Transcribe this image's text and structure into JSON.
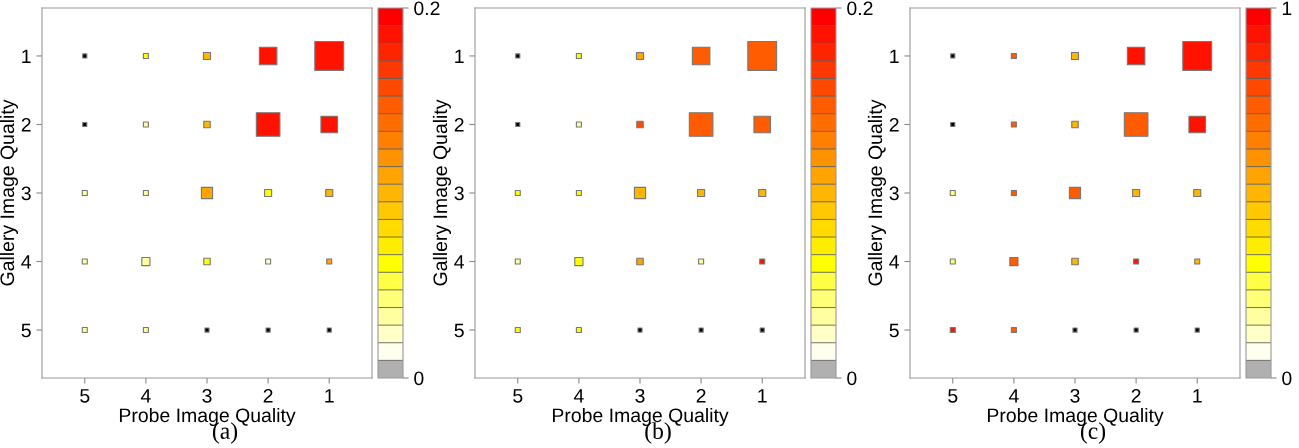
{
  "chart_data": [
    {
      "type": "bubble",
      "xlabel": "Probe Image Quality",
      "ylabel": "Gallery Image Quality",
      "annotations": [
        "(a)"
      ],
      "categories": [
        "5",
        "4",
        "3",
        "2",
        "1"
      ],
      "ylim": [
        5.7,
        0.3
      ],
      "yticks": [
        1,
        2,
        3,
        4,
        5
      ],
      "marker": "square",
      "clim": [
        0,
        0.2
      ],
      "cticks": [
        0,
        0.2
      ],
      "grid": false,
      "legend": false,
      "series": [
        {
          "x": [
            "5",
            "4",
            "3",
            "2",
            "1",
            "5",
            "4",
            "3",
            "2",
            "1",
            "5",
            "4",
            "3",
            "2",
            "1",
            "5",
            "4",
            "3",
            "2",
            "1",
            "5",
            "4",
            "3",
            "2",
            "1"
          ],
          "values": [
            1,
            1,
            1,
            1,
            1,
            2,
            2,
            2,
            2,
            2,
            3,
            3,
            3,
            3,
            3,
            4,
            4,
            4,
            4,
            4,
            5,
            5,
            5,
            5,
            5
          ],
          "sizes": [
            0.02,
            0.03,
            0.06,
            0.37,
            1,
            0.02,
            0.03,
            0.05,
            0.67,
            0.33,
            0.03,
            0.03,
            0.15,
            0.06,
            0.06,
            0.03,
            0.08,
            0.05,
            0.03,
            0.03,
            0.03,
            0.03,
            0.02,
            0.02,
            0.02
          ],
          "cvalues": [
            null,
            0.06,
            0.1,
            0.19,
            0.19,
            null,
            0.03,
            0.1,
            0.19,
            0.19,
            0.035,
            0.035,
            0.105,
            0.06,
            0.1,
            0.03,
            0.035,
            0.06,
            0.025,
            0.11,
            0.03,
            0.035,
            null,
            null,
            null
          ]
        }
      ]
    },
    {
      "type": "bubble",
      "xlabel": "Probe Image Quality",
      "ylabel": "Gallery Image Quality",
      "annotations": [
        "(b)"
      ],
      "categories": [
        "5",
        "4",
        "3",
        "2",
        "1"
      ],
      "ylim": [
        5.7,
        0.3
      ],
      "yticks": [
        1,
        2,
        3,
        4,
        5
      ],
      "marker": "square",
      "clim": [
        0,
        0.2
      ],
      "cticks": [
        0,
        0.2
      ],
      "grid": false,
      "legend": false,
      "series": [
        {
          "x": [
            "5",
            "4",
            "3",
            "2",
            "1",
            "5",
            "4",
            "3",
            "2",
            "1",
            "5",
            "4",
            "3",
            "2",
            "1",
            "5",
            "4",
            "3",
            "2",
            "1",
            "5",
            "4",
            "3",
            "2",
            "1"
          ],
          "values": [
            1,
            1,
            1,
            1,
            1,
            2,
            2,
            2,
            2,
            2,
            3,
            3,
            3,
            3,
            3,
            4,
            4,
            4,
            4,
            4,
            5,
            5,
            5,
            5,
            5
          ],
          "sizes": [
            0.02,
            0.03,
            0.06,
            0.37,
            1,
            0.02,
            0.03,
            0.05,
            0.67,
            0.33,
            0.03,
            0.03,
            0.15,
            0.06,
            0.06,
            0.03,
            0.08,
            0.05,
            0.03,
            0.03,
            0.03,
            0.03,
            0.02,
            0.02,
            0.02
          ],
          "cvalues": [
            null,
            0.06,
            0.105,
            0.15,
            0.15,
            null,
            0.03,
            0.155,
            0.15,
            0.15,
            0.06,
            0.06,
            0.1,
            0.1,
            0.1,
            0.035,
            0.06,
            0.11,
            0.035,
            0.19,
            0.06,
            0.065,
            null,
            null,
            null
          ]
        }
      ]
    },
    {
      "type": "bubble",
      "xlabel": "Probe Image Quality",
      "ylabel": "Gallery Image Quality",
      "annotations": [
        "(c)"
      ],
      "categories": [
        "5",
        "4",
        "3",
        "2",
        "1"
      ],
      "ylim": [
        5.7,
        0.3
      ],
      "yticks": [
        1,
        2,
        3,
        4,
        5
      ],
      "marker": "square",
      "clim": [
        0,
        1
      ],
      "cticks": [
        0,
        1
      ],
      "grid": false,
      "legend": false,
      "series": [
        {
          "x": [
            "5",
            "4",
            "3",
            "2",
            "1",
            "5",
            "4",
            "3",
            "2",
            "1",
            "5",
            "4",
            "3",
            "2",
            "1",
            "5",
            "4",
            "3",
            "2",
            "1",
            "5",
            "4",
            "3",
            "2",
            "1"
          ],
          "values": [
            1,
            1,
            1,
            1,
            1,
            2,
            2,
            2,
            2,
            2,
            3,
            3,
            3,
            3,
            3,
            4,
            4,
            4,
            4,
            4,
            5,
            5,
            5,
            5,
            5
          ],
          "sizes": [
            0.02,
            0.03,
            0.06,
            0.37,
            1,
            0.02,
            0.03,
            0.05,
            0.67,
            0.33,
            0.03,
            0.03,
            0.15,
            0.06,
            0.06,
            0.03,
            0.08,
            0.05,
            0.03,
            0.03,
            0.03,
            0.03,
            0.02,
            0.02,
            0.02
          ],
          "cvalues": [
            null,
            0.75,
            0.5,
            0.95,
            0.95,
            null,
            0.75,
            0.5,
            0.75,
            0.95,
            0.2,
            0.75,
            0.75,
            0.5,
            0.5,
            0.2,
            0.75,
            0.5,
            0.95,
            0.5,
            0.95,
            0.75,
            null,
            null,
            null
          ]
        }
      ]
    }
  ]
}
